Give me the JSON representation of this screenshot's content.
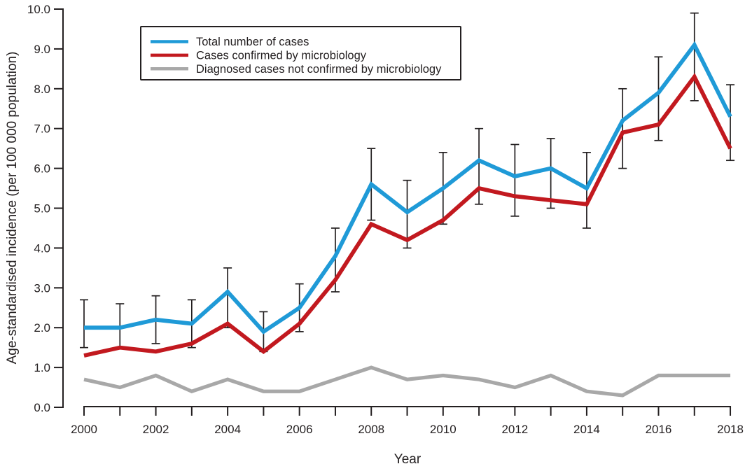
{
  "page": {
    "background_color": "#FFFFFF",
    "text_color": "#231F20",
    "axis_color": "#231F20"
  },
  "chart_data": {
    "type": "line",
    "title": "",
    "xlabel": "Year",
    "ylabel": "Age-standardised incidence (per 100 000 population)",
    "grid": false,
    "legend_position": "top-left-inside-border-box",
    "ylim": [
      0.0,
      10.0
    ],
    "y_tick_step": 1.0,
    "y_tick_labels": [
      "0.0",
      "1.0",
      "2.0",
      "3.0",
      "4.0",
      "5.0",
      "6.0",
      "7.0",
      "8.0",
      "9.0",
      "10.0"
    ],
    "x_tick_labels": [
      "2000",
      "2002",
      "2004",
      "2006",
      "2008",
      "2010",
      "2012",
      "2014",
      "2016",
      "2018"
    ],
    "years": [
      2000,
      2001,
      2002,
      2003,
      2004,
      2005,
      2006,
      2007,
      2008,
      2009,
      2010,
      2011,
      2012,
      2013,
      2014,
      2015,
      2016,
      2017,
      2018
    ],
    "series": [
      {
        "name": "Total number of cases",
        "color": "#1F9AD7",
        "stroke_width": 5.8,
        "values": [
          2.0,
          2.0,
          2.2,
          2.1,
          2.9,
          1.9,
          2.5,
          3.8,
          5.6,
          4.9,
          5.5,
          6.2,
          5.8,
          6.0,
          5.5,
          7.2,
          7.9,
          9.1,
          7.3
        ]
      },
      {
        "name": "Cases confirmed by microbiology",
        "color": "#C2191F",
        "stroke_width": 5.8,
        "values": [
          1.3,
          1.5,
          1.4,
          1.6,
          2.1,
          1.4,
          2.1,
          3.2,
          4.6,
          4.2,
          4.7,
          5.5,
          5.3,
          5.2,
          5.1,
          6.9,
          7.1,
          8.3,
          6.5
        ]
      },
      {
        "name": "Diagnosed cases not confirmed by microbiology",
        "color": "#A8A8A8",
        "stroke_width": 5.2,
        "values": [
          0.7,
          0.5,
          0.8,
          0.4,
          0.7,
          0.4,
          0.4,
          0.7,
          1.0,
          0.7,
          0.8,
          0.7,
          0.5,
          0.8,
          0.4,
          0.3,
          0.8,
          0.8,
          0.8
        ]
      }
    ],
    "error_bars": {
      "on_series": "Total number of cases",
      "color": "#231F20",
      "low": [
        1.5,
        1.5,
        1.6,
        1.5,
        2.0,
        1.4,
        1.9,
        2.9,
        4.7,
        4.0,
        4.6,
        5.1,
        4.8,
        5.0,
        4.5,
        6.0,
        6.7,
        7.7,
        6.2
      ],
      "high": [
        2.7,
        2.6,
        2.8,
        2.7,
        3.5,
        2.4,
        3.1,
        4.5,
        6.5,
        5.7,
        6.4,
        7.0,
        6.6,
        6.75,
        6.4,
        8.0,
        8.8,
        9.9,
        8.1
      ]
    }
  }
}
